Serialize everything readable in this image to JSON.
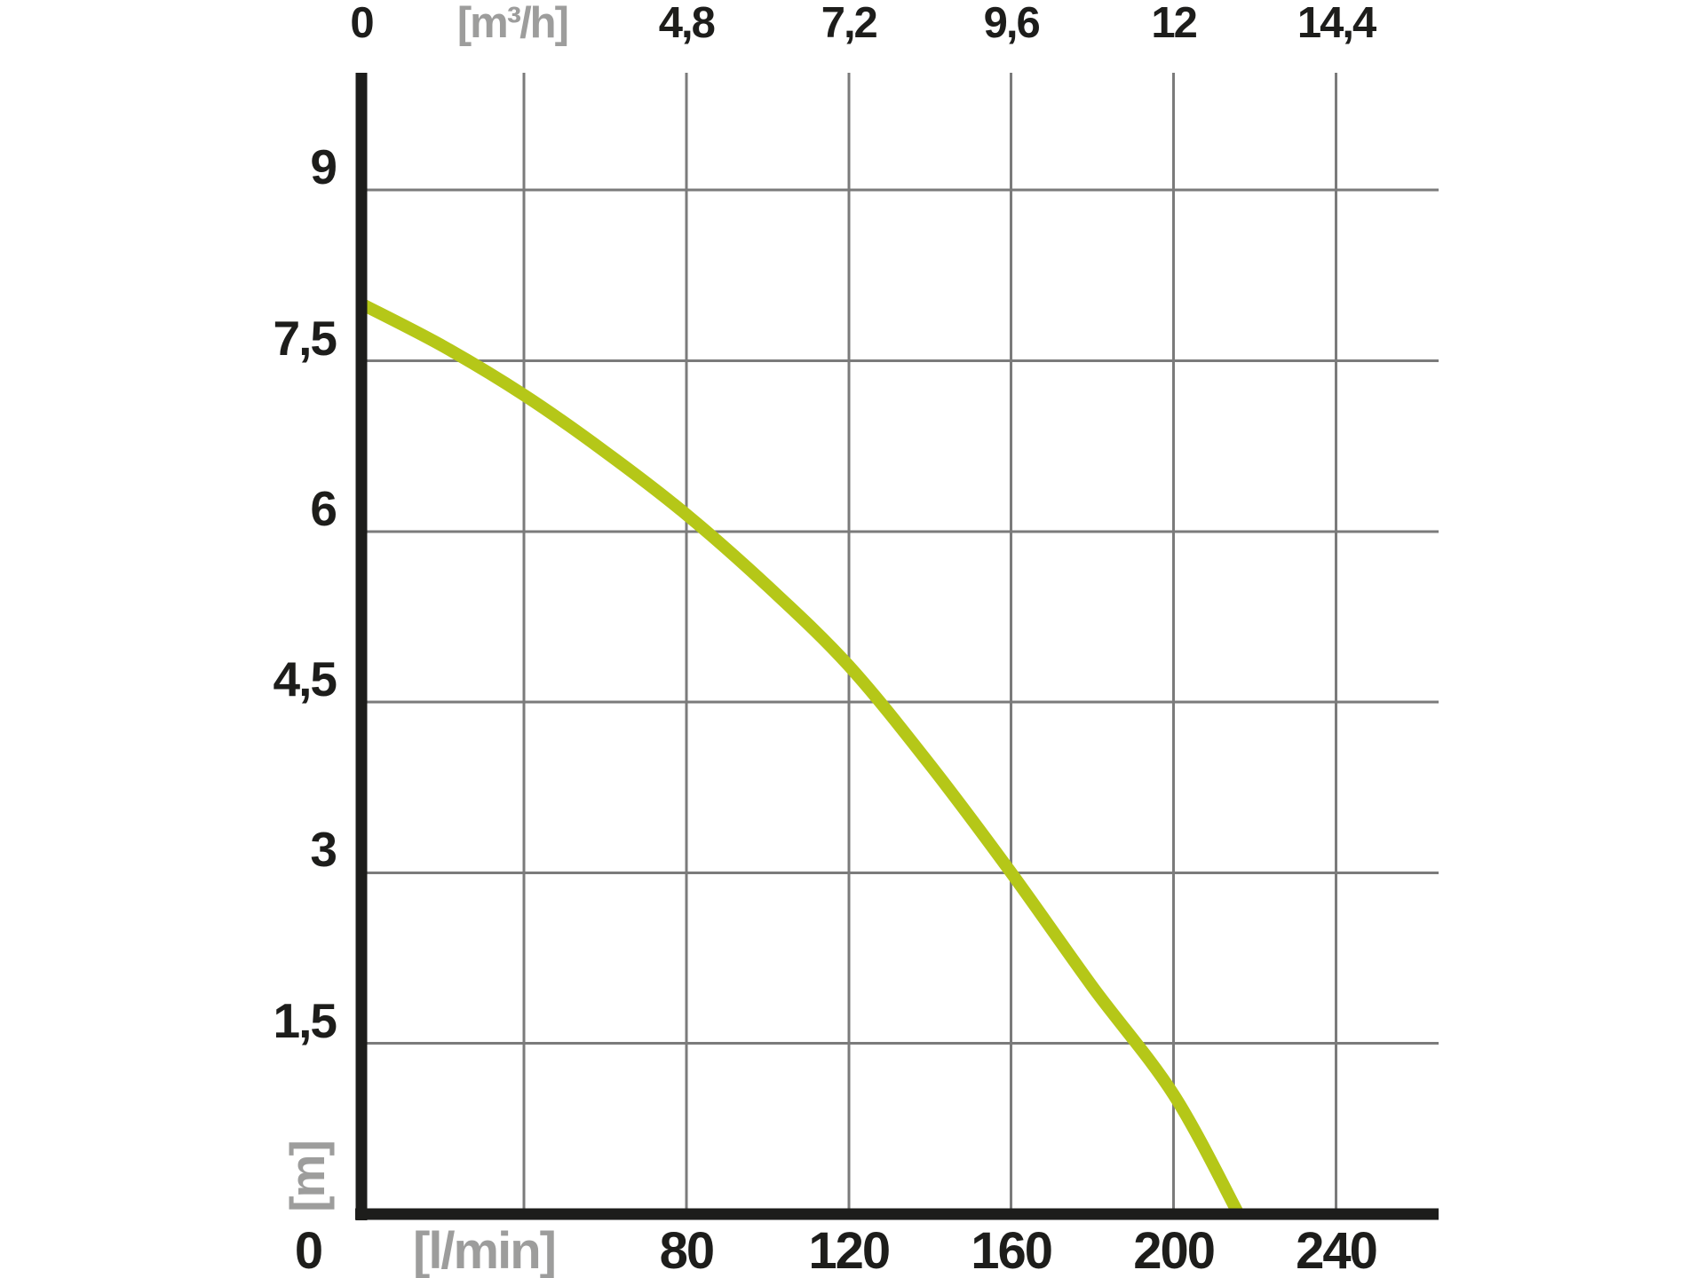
{
  "page": {
    "background_color": "#ffffff",
    "description_text": ""
  },
  "chart_data": {
    "type": "line",
    "title": "",
    "grid": {
      "visible": true,
      "x_step_lmin": 40,
      "y_step_m": 1.5,
      "grid_color": "#7b7b7b",
      "axis_color": "#1d1d1b"
    },
    "xlim_lmin": [
      0,
      265
    ],
    "ylim_m": [
      0,
      10.05
    ],
    "x_axis_top": {
      "unit": "[m³/h]",
      "unit_at_lmin": 40,
      "ticks": [
        {
          "label": "0",
          "lmin": 0
        },
        {
          "label": "4,8",
          "lmin": 80
        },
        {
          "label": "7,2",
          "lmin": 120
        },
        {
          "label": "9,6",
          "lmin": 160
        },
        {
          "label": "12",
          "lmin": 200
        },
        {
          "label": "14,4",
          "lmin": 240
        }
      ]
    },
    "x_axis_bottom": {
      "unit": "[l/min]",
      "unit_at_lmin": 40,
      "ticks": [
        {
          "label": "0",
          "lmin": 0
        },
        {
          "label": "80",
          "lmin": 80
        },
        {
          "label": "120",
          "lmin": 120
        },
        {
          "label": "160",
          "lmin": 160
        },
        {
          "label": "200",
          "lmin": 200
        },
        {
          "label": "240",
          "lmin": 240
        }
      ]
    },
    "y_axis": {
      "unit": "[m]",
      "ticks": [
        {
          "label": "9",
          "m": 9
        },
        {
          "label": "7,5",
          "m": 7.5
        },
        {
          "label": "6",
          "m": 6
        },
        {
          "label": "4,5",
          "m": 4.5
        },
        {
          "label": "3",
          "m": 3
        },
        {
          "label": "1,5",
          "m": 1.5
        }
      ]
    },
    "series": [
      {
        "name": "pump-head-flow-curve",
        "color": "#b5c718",
        "stroke_width_px": 14,
        "points_lmin_m": [
          [
            0,
            8.0
          ],
          [
            20,
            7.63
          ],
          [
            40,
            7.2
          ],
          [
            60,
            6.7
          ],
          [
            80,
            6.15
          ],
          [
            100,
            5.52
          ],
          [
            120,
            4.82
          ],
          [
            140,
            3.95
          ],
          [
            160,
            3.0
          ],
          [
            180,
            2.0
          ],
          [
            200,
            1.05
          ],
          [
            216,
            0
          ]
        ]
      }
    ]
  }
}
